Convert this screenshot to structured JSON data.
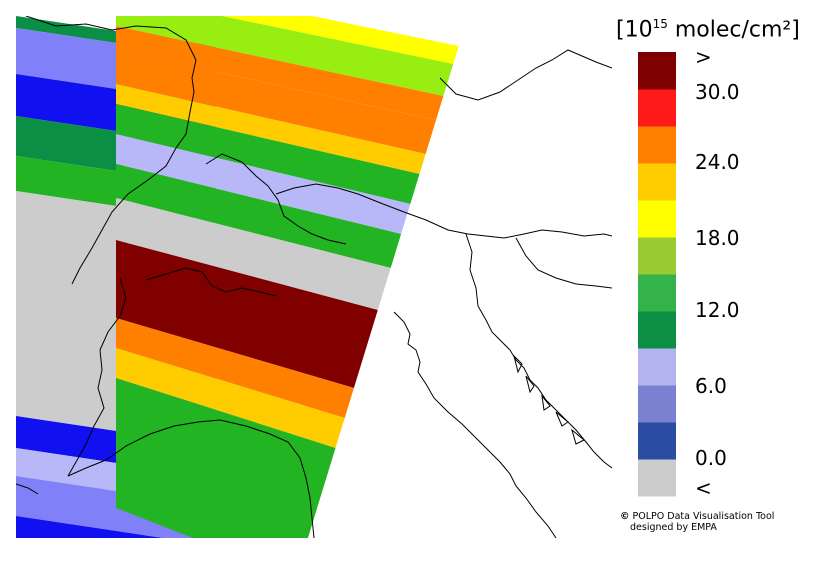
{
  "legend": {
    "title_prefix": "[10",
    "title_exp": "15",
    "title_suffix": " molec/cm²]",
    "colors": [
      "#cccccc",
      "#2a4da3",
      "#7b80d0",
      "#b3b4ee",
      "#0b8f45",
      "#33b34a",
      "#99cc33",
      "#ffff00",
      "#ffcc00",
      "#ff7f00",
      "#ff1a1a",
      "#7f0000"
    ],
    "labels": [
      ">",
      "30.0",
      "24.0",
      "18.0",
      "12.0",
      "6.0",
      "0.0",
      "<"
    ]
  },
  "map": {
    "band_colors": {
      "below": "#cccccc",
      "c0_3": "#1010f0",
      "c3_6": "#8080f8",
      "c6_9": "#b8b8f8",
      "c9_12": "#0b8f45",
      "c12_15": "#22b422",
      "c15_18": "#99ee11",
      "c18_21": "#ffff00",
      "c21_24": "#ffcc00",
      "c24_27": "#ff8000",
      "above": "#800000"
    }
  },
  "credit": {
    "symbol": "©",
    "line1": "POLPO Data Visualisation Tool",
    "line2": "designed by EMPA"
  }
}
